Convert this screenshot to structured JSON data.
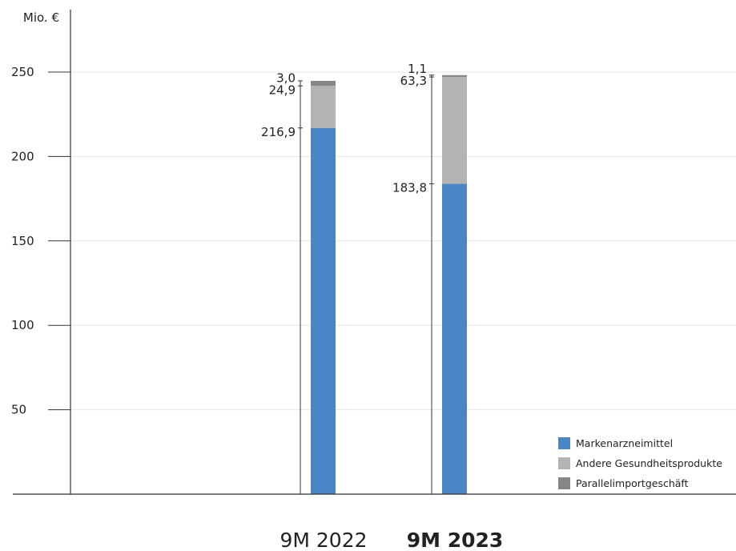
{
  "chart_data": {
    "type": "bar",
    "stacked": true,
    "unit_label": "Mio. €",
    "categories": [
      "9M 2022",
      "9M 2023"
    ],
    "category_bold": [
      false,
      true
    ],
    "ylim": [
      0,
      250
    ],
    "yticks": [
      50,
      100,
      150,
      200,
      250
    ],
    "grid": true,
    "legend_position": "bottom-right",
    "series": [
      {
        "name": "Markenarzneimittel",
        "values": [
          216.9,
          183.8
        ],
        "labels": [
          "216,9",
          "183,8"
        ],
        "color": "#4a86c5"
      },
      {
        "name": "Andere Gesundheitsprodukte",
        "values": [
          24.9,
          63.3
        ],
        "labels": [
          "24,9",
          "63,3"
        ],
        "color": "#b3b3b3"
      },
      {
        "name": "Parallelimportgeschäft",
        "values": [
          3.0,
          1.1
        ],
        "labels": [
          "3,0",
          "1,1"
        ],
        "color": "#878787"
      }
    ]
  }
}
